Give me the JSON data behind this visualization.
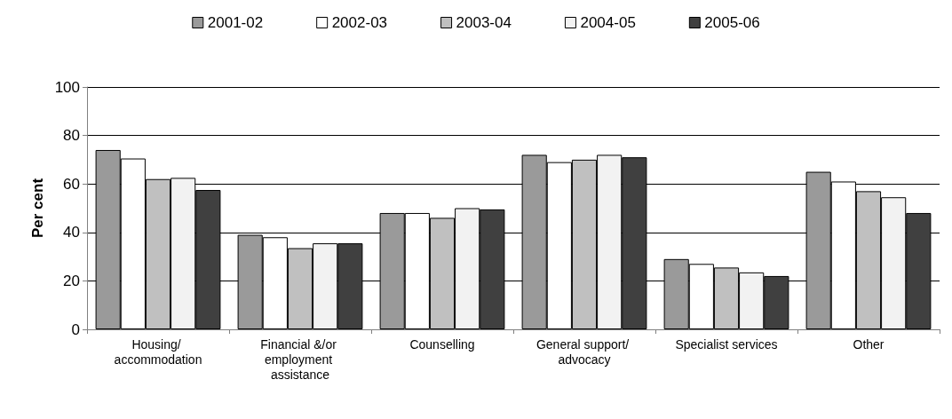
{
  "chart_data": {
    "type": "bar",
    "ylabel": "Per cent",
    "categories": [
      "Housing/ accommodation",
      "Financial &/or employment assistance",
      "Counselling",
      "General support/ advocacy",
      "Specialist services",
      "Other"
    ],
    "series": [
      {
        "name": "2001-02",
        "color": "#9a9a9a",
        "values": [
          74,
          39,
          48,
          72,
          29,
          65
        ]
      },
      {
        "name": "2002-03",
        "color": "#ffffff",
        "values": [
          70.5,
          38,
          48,
          69,
          27,
          61
        ]
      },
      {
        "name": "2003-04",
        "color": "#c0c0c0",
        "values": [
          62,
          33.5,
          46,
          70,
          25.5,
          57
        ]
      },
      {
        "name": "2004-05",
        "color": "#f2f2f2",
        "values": [
          62.5,
          35.5,
          50,
          72,
          23.5,
          54.5
        ]
      },
      {
        "name": "2005-06",
        "color": "#404040",
        "values": [
          57.5,
          35.5,
          49.5,
          71,
          22,
          48
        ]
      }
    ],
    "ylim": [
      0,
      100
    ],
    "yticks": [
      0,
      20,
      40,
      60,
      80,
      100
    ],
    "grid": "y",
    "legend": "top"
  }
}
